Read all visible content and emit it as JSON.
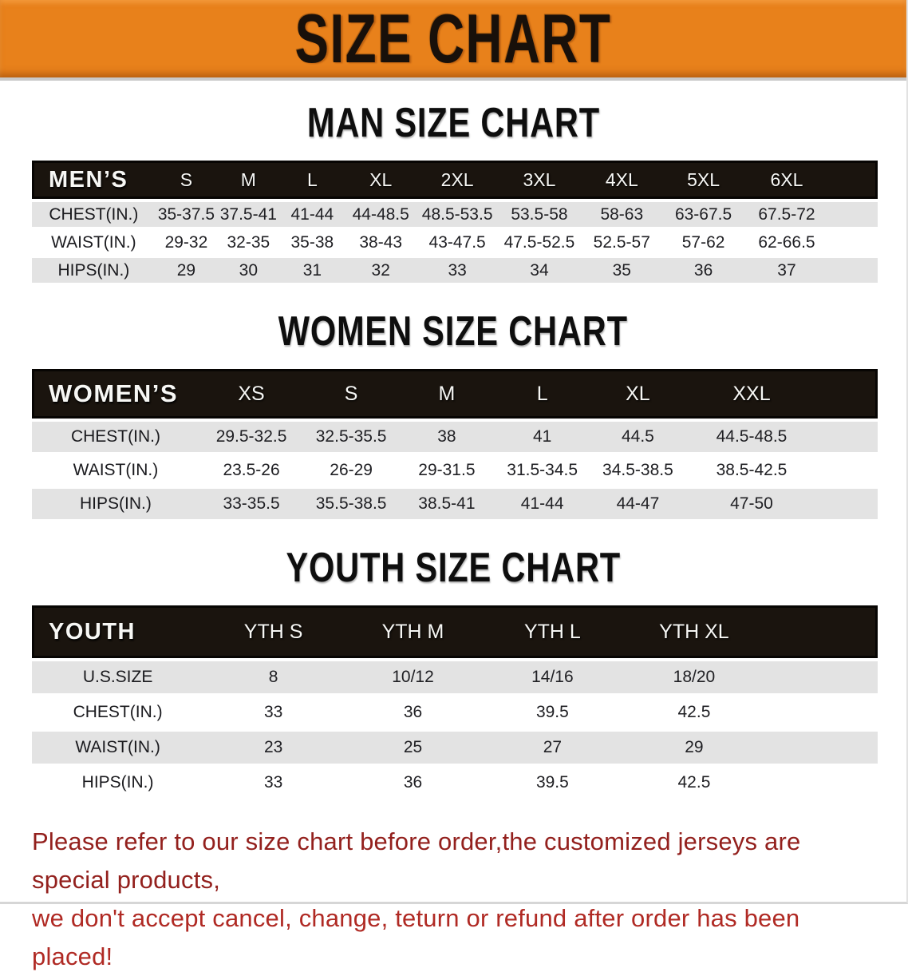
{
  "banner": {
    "title": "SIZE CHART"
  },
  "colors": {
    "banner_bg": "#e8811b",
    "banner_text": "#18100a",
    "table_header_bg": "#1a140e",
    "row_stripe_gray": "#e3e3e3",
    "note_red_dark": "#93201d",
    "note_red_bright": "#b02a24"
  },
  "chart_data": [
    {
      "type": "table",
      "title": "MAN SIZE CHART",
      "group_label": "MEN’S",
      "columns": [
        "S",
        "M",
        "L",
        "XL",
        "2XL",
        "3XL",
        "4XL",
        "5XL",
        "6XL"
      ],
      "rows": [
        {
          "label": "CHEST(IN.)",
          "values": [
            "35-37.5",
            "37.5-41",
            "41-44",
            "44-48.5",
            "48.5-53.5",
            "53.5-58",
            "58-63",
            "63-67.5",
            "67.5-72"
          ]
        },
        {
          "label": "WAIST(IN.)",
          "values": [
            "29-32",
            "32-35",
            "35-38",
            "38-43",
            "43-47.5",
            "47.5-52.5",
            "52.5-57",
            "57-62",
            "62-66.5"
          ]
        },
        {
          "label": "HIPS(IN.)",
          "values": [
            "29",
            "30",
            "31",
            "32",
            "33",
            "34",
            "35",
            "36",
            "37"
          ]
        }
      ]
    },
    {
      "type": "table",
      "title": "WOMEN SIZE CHART",
      "group_label": "WOMEN’S",
      "columns": [
        "XS",
        "S",
        "M",
        "L",
        "XL",
        "XXL"
      ],
      "rows": [
        {
          "label": "CHEST(IN.)",
          "values": [
            "29.5-32.5",
            "32.5-35.5",
            "38",
            "41",
            "44.5",
            "44.5-48.5"
          ]
        },
        {
          "label": "WAIST(IN.)",
          "values": [
            "23.5-26",
            "26-29",
            "29-31.5",
            "31.5-34.5",
            "34.5-38.5",
            "38.5-42.5"
          ]
        },
        {
          "label": "HIPS(IN.)",
          "values": [
            "33-35.5",
            "35.5-38.5",
            "38.5-41",
            "41-44",
            "44-47",
            "47-50"
          ]
        }
      ]
    },
    {
      "type": "table",
      "title": "YOUTH SIZE CHART",
      "group_label": "YOUTH",
      "columns": [
        "YTH S",
        "YTH M",
        "YTH L",
        "YTH XL"
      ],
      "rows": [
        {
          "label": "U.S.SIZE",
          "values": [
            "8",
            "10/12",
            "14/16",
            "18/20"
          ]
        },
        {
          "label": "CHEST(IN.)",
          "values": [
            "33",
            "36",
            "39.5",
            "42.5"
          ]
        },
        {
          "label": "WAIST(IN.)",
          "values": [
            "23",
            "25",
            "27",
            "29"
          ]
        },
        {
          "label": "HIPS(IN.)",
          "values": [
            "33",
            "36",
            "39.5",
            "42.5"
          ]
        }
      ]
    }
  ],
  "footer_note": {
    "line1": "Please refer to our size chart before order,the customized jerseys are special products,",
    "line2": "we don't accept cancel, change, teturn or refund after order has been placed!"
  }
}
